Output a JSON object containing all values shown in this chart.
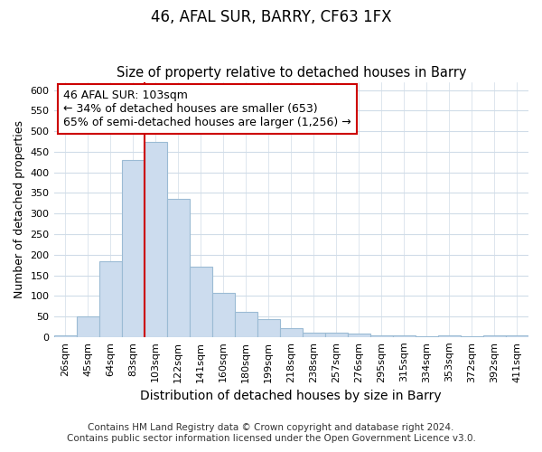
{
  "title": "46, AFAL SUR, BARRY, CF63 1FX",
  "subtitle": "Size of property relative to detached houses in Barry",
  "xlabel": "Distribution of detached houses by size in Barry",
  "ylabel": "Number of detached properties",
  "categories": [
    "26sqm",
    "45sqm",
    "64sqm",
    "83sqm",
    "103sqm",
    "122sqm",
    "141sqm",
    "160sqm",
    "180sqm",
    "199sqm",
    "218sqm",
    "238sqm",
    "257sqm",
    "276sqm",
    "295sqm",
    "315sqm",
    "334sqm",
    "353sqm",
    "372sqm",
    "392sqm",
    "411sqm"
  ],
  "values": [
    3,
    50,
    185,
    430,
    475,
    335,
    170,
    107,
    60,
    43,
    22,
    10,
    10,
    8,
    5,
    3,
    2,
    3,
    2,
    5,
    3
  ],
  "bar_color": "#ccdcee",
  "bar_edge_color": "#9bbbd4",
  "vline_bar_index": 4,
  "vline_color": "#cc0000",
  "annotation_line1": "46 AFAL SUR: 103sqm",
  "annotation_line2": "← 34% of detached houses are smaller (653)",
  "annotation_line3": "65% of semi-detached houses are larger (1,256) →",
  "annotation_box_facecolor": "#ffffff",
  "annotation_box_edgecolor": "#cc0000",
  "ylim": [
    0,
    620
  ],
  "yticks": [
    0,
    50,
    100,
    150,
    200,
    250,
    300,
    350,
    400,
    450,
    500,
    550,
    600
  ],
  "background_color": "#ffffff",
  "plot_bg_color": "#ffffff",
  "grid_color": "#d0dce8",
  "title_fontsize": 12,
  "subtitle_fontsize": 10.5,
  "xlabel_fontsize": 10,
  "ylabel_fontsize": 9,
  "tick_fontsize": 8,
  "annotation_fontsize": 9,
  "footer_fontsize": 7.5,
  "footer_line1": "Contains HM Land Registry data © Crown copyright and database right 2024.",
  "footer_line2": "Contains public sector information licensed under the Open Government Licence v3.0."
}
